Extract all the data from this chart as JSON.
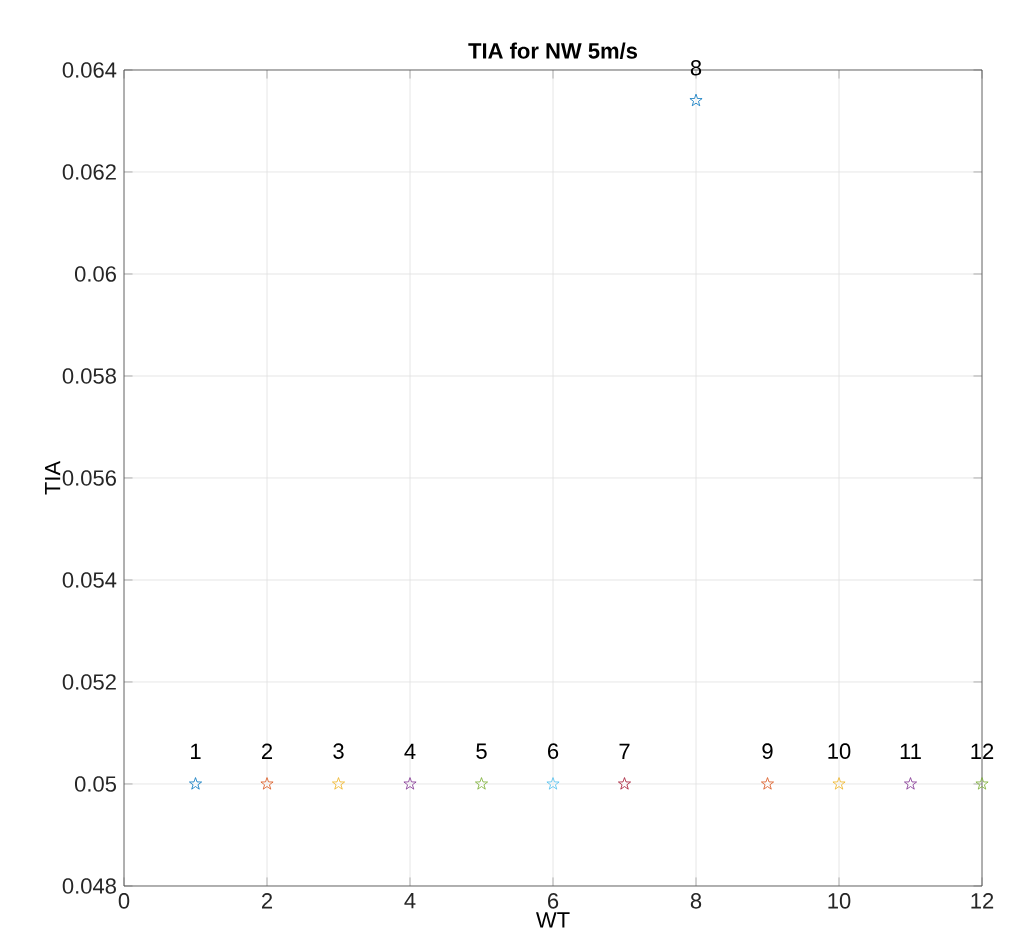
{
  "chart_data": {
    "type": "scatter",
    "title": "TIA for NW 5m/s",
    "xlabel": "WT",
    "ylabel": "TIA",
    "x": [
      1,
      2,
      3,
      4,
      5,
      6,
      7,
      8,
      9,
      10,
      11,
      12
    ],
    "values": [
      0.05,
      0.05,
      0.05,
      0.05,
      0.05,
      0.05,
      0.05,
      0.0634,
      0.05,
      0.05,
      0.05,
      0.05
    ],
    "colors": [
      "#0072bd",
      "#d95319",
      "#edb120",
      "#7e2f8e",
      "#77ac30",
      "#4dbeee",
      "#a2142f",
      "#0072bd",
      "#d95319",
      "#edb120",
      "#7e2f8e",
      "#77ac30"
    ],
    "marker": "star",
    "grid": true,
    "xlim": [
      0,
      12
    ],
    "xticks": [
      0,
      2,
      4,
      6,
      8,
      10,
      12
    ],
    "ylim": [
      0.048,
      0.064
    ],
    "yticks": [
      0.048,
      0.05,
      0.052,
      0.054,
      0.056,
      0.058,
      0.06,
      0.062,
      0.064
    ],
    "annotations": [
      {
        "text": "1",
        "x": 1,
        "y": 0.05
      },
      {
        "text": "2",
        "x": 2,
        "y": 0.05
      },
      {
        "text": "3",
        "x": 3,
        "y": 0.05
      },
      {
        "text": "4",
        "x": 4,
        "y": 0.05
      },
      {
        "text": "5",
        "x": 5,
        "y": 0.05
      },
      {
        "text": "6",
        "x": 6,
        "y": 0.05
      },
      {
        "text": "7",
        "x": 7,
        "y": 0.05
      },
      {
        "text": "8",
        "x": 8,
        "y": 0.0634
      },
      {
        "text": "9",
        "x": 9,
        "y": 0.05
      },
      {
        "text": "10",
        "x": 10,
        "y": 0.05
      },
      {
        "text": "11",
        "x": 11,
        "y": 0.05
      },
      {
        "text": "12",
        "x": 12,
        "y": 0.05
      }
    ]
  }
}
